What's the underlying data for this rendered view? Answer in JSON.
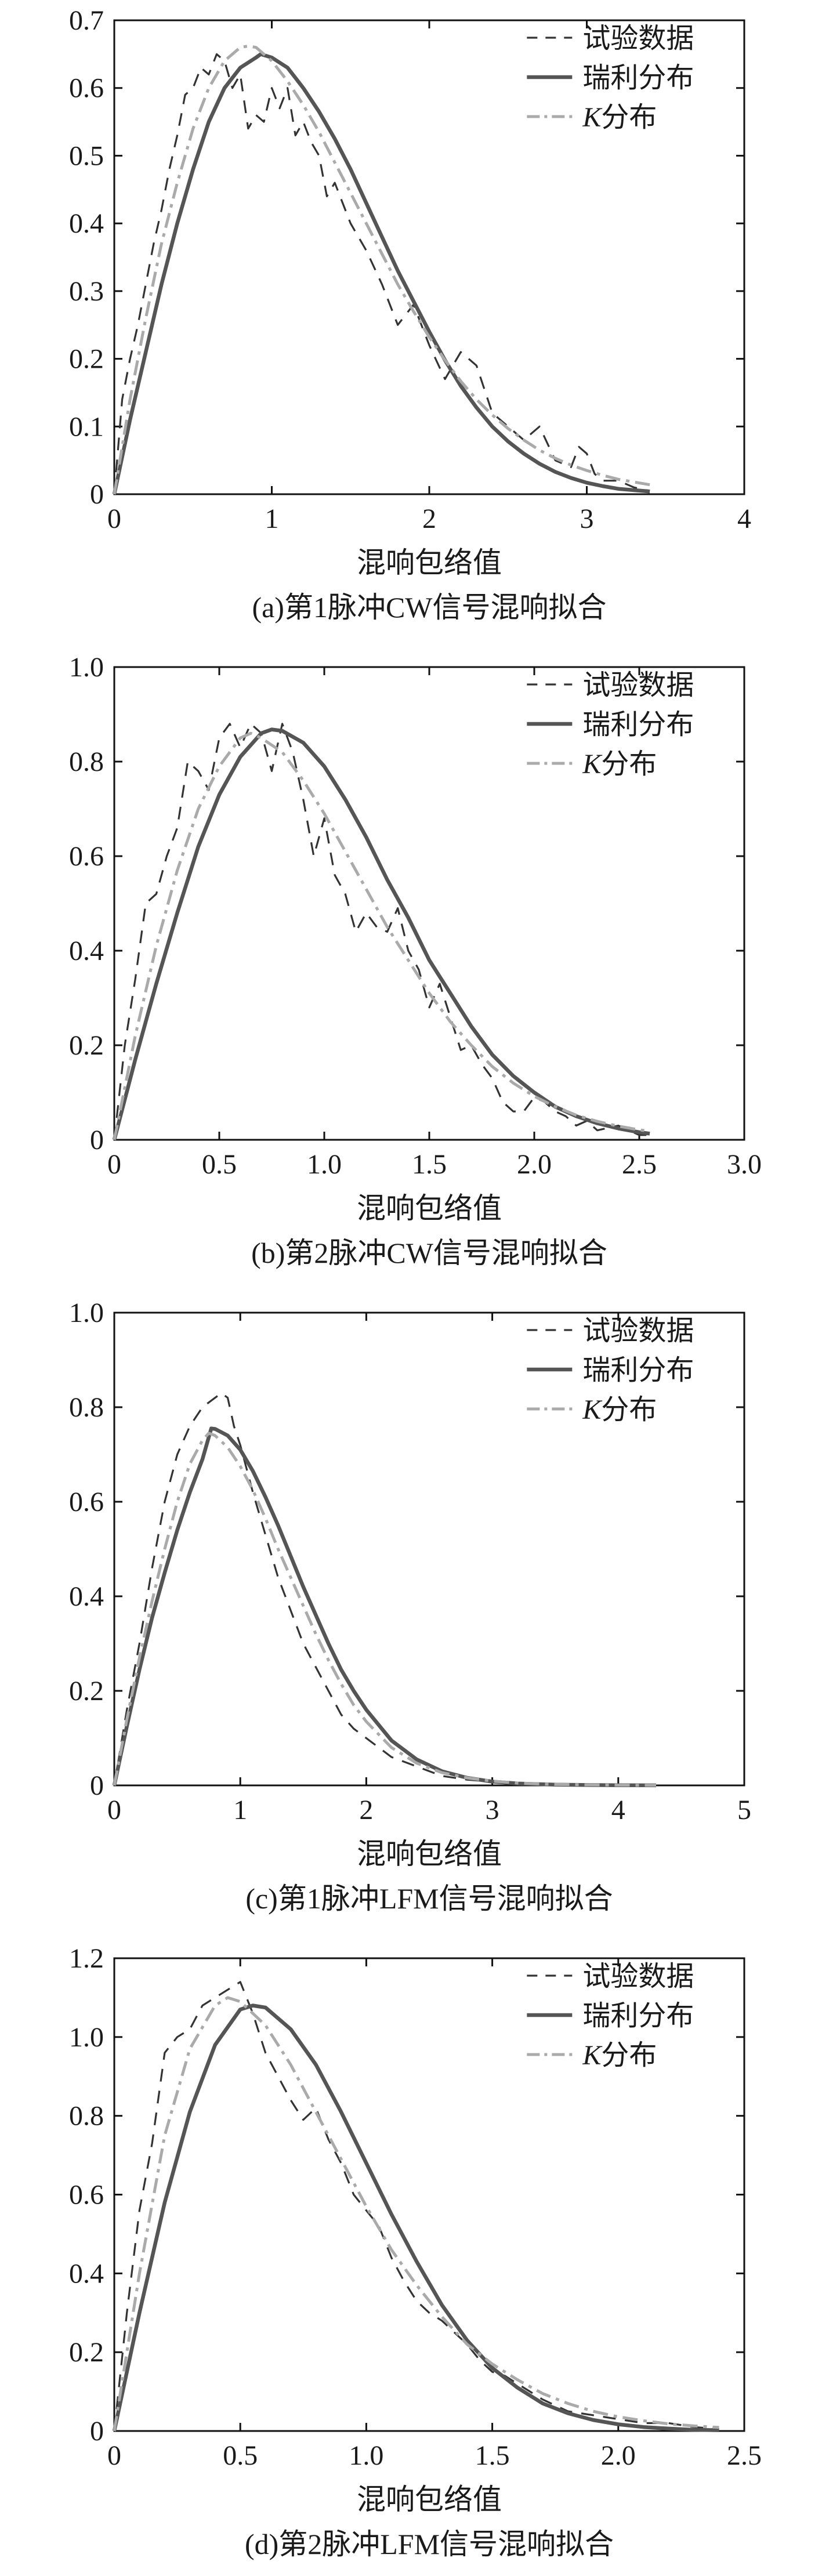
{
  "chart_data": [
    {
      "type": "line",
      "caption": "(a)第1脉冲CW信号混响拟合",
      "xlabel": "混响包络值",
      "ylabel": "",
      "xlim": [
        0,
        4
      ],
      "ylim": [
        0,
        0.7
      ],
      "xticks": [
        0,
        1,
        2,
        3,
        4
      ],
      "xtick_labels": [
        "0",
        "1",
        "2",
        "3",
        "4"
      ],
      "yticks": [
        0,
        0.1,
        0.2,
        0.3,
        0.4,
        0.5,
        0.6,
        0.7
      ],
      "ytick_labels": [
        "0",
        "0.1",
        "0.2",
        "0.3",
        "0.4",
        "0.5",
        "0.6",
        "0.7"
      ],
      "legend_position": "top-right",
      "series": [
        {
          "name": "试验数据",
          "style": "dashed",
          "color": "#333333",
          "x": [
            0,
            0.05,
            0.1,
            0.15,
            0.2,
            0.25,
            0.3,
            0.35,
            0.4,
            0.45,
            0.5,
            0.55,
            0.6,
            0.65,
            0.7,
            0.75,
            0.8,
            0.85,
            0.9,
            0.95,
            1.0,
            1.05,
            1.1,
            1.15,
            1.2,
            1.25,
            1.3,
            1.35,
            1.4,
            1.5,
            1.6,
            1.7,
            1.8,
            1.9,
            2.0,
            2.1,
            2.2,
            2.3,
            2.4,
            2.5,
            2.6,
            2.7,
            2.8,
            2.9,
            2.95,
            3.0,
            3.05,
            3.1,
            3.2,
            3.3,
            3.4
          ],
          "y": [
            0,
            0.14,
            0.2,
            0.25,
            0.31,
            0.37,
            0.42,
            0.48,
            0.53,
            0.59,
            0.6,
            0.63,
            0.62,
            0.65,
            0.64,
            0.6,
            0.62,
            0.54,
            0.56,
            0.55,
            0.6,
            0.57,
            0.6,
            0.53,
            0.55,
            0.52,
            0.5,
            0.44,
            0.46,
            0.4,
            0.36,
            0.31,
            0.25,
            0.28,
            0.22,
            0.17,
            0.21,
            0.19,
            0.12,
            0.1,
            0.08,
            0.1,
            0.05,
            0.04,
            0.07,
            0.06,
            0.03,
            0.02,
            0.02,
            0.01,
            0.005
          ]
        },
        {
          "name": "瑞利分布",
          "style": "solid",
          "color": "#555555",
          "x": [
            0,
            0.1,
            0.2,
            0.3,
            0.4,
            0.5,
            0.6,
            0.7,
            0.8,
            0.9,
            0.93,
            1.0,
            1.1,
            1.2,
            1.3,
            1.4,
            1.5,
            1.6,
            1.7,
            1.8,
            1.9,
            2.0,
            2.1,
            2.2,
            2.3,
            2.4,
            2.5,
            2.6,
            2.7,
            2.8,
            2.9,
            3.0,
            3.1,
            3.2,
            3.3,
            3.4
          ],
          "y": [
            0,
            0.11,
            0.21,
            0.31,
            0.4,
            0.48,
            0.55,
            0.6,
            0.63,
            0.645,
            0.65,
            0.645,
            0.63,
            0.6,
            0.565,
            0.525,
            0.48,
            0.43,
            0.38,
            0.33,
            0.285,
            0.24,
            0.198,
            0.16,
            0.128,
            0.1,
            0.078,
            0.06,
            0.045,
            0.033,
            0.024,
            0.017,
            0.012,
            0.008,
            0.006,
            0.004
          ]
        },
        {
          "name": "K分布",
          "name_italic_prefix": "K",
          "name_rest": "分布",
          "style": "dashdot",
          "color": "#aaaaaa",
          "x": [
            0,
            0.1,
            0.2,
            0.3,
            0.4,
            0.5,
            0.6,
            0.7,
            0.8,
            0.85,
            0.9,
            1.0,
            1.1,
            1.2,
            1.3,
            1.4,
            1.5,
            1.6,
            1.7,
            1.8,
            1.9,
            2.0,
            2.1,
            2.2,
            2.3,
            2.4,
            2.5,
            2.6,
            2.7,
            2.8,
            2.9,
            3.0,
            3.1,
            3.2,
            3.3,
            3.4
          ],
          "y": [
            0,
            0.14,
            0.26,
            0.37,
            0.46,
            0.54,
            0.6,
            0.64,
            0.66,
            0.662,
            0.66,
            0.64,
            0.61,
            0.575,
            0.535,
            0.49,
            0.445,
            0.4,
            0.355,
            0.31,
            0.27,
            0.232,
            0.198,
            0.167,
            0.14,
            0.117,
            0.097,
            0.08,
            0.065,
            0.053,
            0.043,
            0.035,
            0.028,
            0.022,
            0.018,
            0.014
          ]
        }
      ]
    },
    {
      "type": "line",
      "caption": "(b)第2脉冲CW信号混响拟合",
      "xlabel": "混响包络值",
      "ylabel": "",
      "xlim": [
        0,
        3.0
      ],
      "ylim": [
        0,
        1.0
      ],
      "xticks": [
        0,
        0.5,
        1.0,
        1.5,
        2.0,
        2.5,
        3.0
      ],
      "xtick_labels": [
        "0",
        "0.5",
        "1.0",
        "1.5",
        "2.0",
        "2.5",
        "3.0"
      ],
      "yticks": [
        0,
        0.2,
        0.4,
        0.6,
        0.8,
        1.0
      ],
      "ytick_labels": [
        "0",
        "0.2",
        "0.4",
        "0.6",
        "0.8",
        "1.0"
      ],
      "legend_position": "top-right",
      "series": [
        {
          "name": "试验数据",
          "style": "dashed",
          "color": "#333333",
          "x": [
            0,
            0.05,
            0.1,
            0.15,
            0.2,
            0.25,
            0.3,
            0.35,
            0.4,
            0.45,
            0.5,
            0.55,
            0.6,
            0.65,
            0.7,
            0.75,
            0.8,
            0.85,
            0.9,
            0.95,
            1.0,
            1.05,
            1.1,
            1.15,
            1.2,
            1.25,
            1.3,
            1.35,
            1.4,
            1.45,
            1.5,
            1.55,
            1.6,
            1.65,
            1.7,
            1.75,
            1.8,
            1.85,
            1.9,
            1.95,
            2.0,
            2.05,
            2.1,
            2.15,
            2.2,
            2.25,
            2.3,
            2.4,
            2.5,
            2.55
          ],
          "y": [
            0,
            0.2,
            0.34,
            0.5,
            0.52,
            0.6,
            0.66,
            0.8,
            0.78,
            0.74,
            0.85,
            0.88,
            0.83,
            0.88,
            0.86,
            0.78,
            0.88,
            0.82,
            0.72,
            0.6,
            0.68,
            0.56,
            0.52,
            0.44,
            0.48,
            0.45,
            0.44,
            0.49,
            0.4,
            0.36,
            0.28,
            0.33,
            0.26,
            0.19,
            0.2,
            0.16,
            0.13,
            0.08,
            0.06,
            0.06,
            0.09,
            0.08,
            0.06,
            0.05,
            0.03,
            0.04,
            0.02,
            0.03,
            0.01,
            0.01
          ]
        },
        {
          "name": "瑞利分布",
          "style": "solid",
          "color": "#555555",
          "x": [
            0,
            0.1,
            0.2,
            0.3,
            0.4,
            0.5,
            0.6,
            0.7,
            0.75,
            0.8,
            0.9,
            1.0,
            1.1,
            1.2,
            1.3,
            1.4,
            1.5,
            1.6,
            1.7,
            1.8,
            1.9,
            2.0,
            2.1,
            2.2,
            2.3,
            2.4,
            2.5,
            2.55
          ],
          "y": [
            0,
            0.17,
            0.33,
            0.48,
            0.62,
            0.73,
            0.81,
            0.86,
            0.868,
            0.865,
            0.84,
            0.79,
            0.72,
            0.64,
            0.55,
            0.47,
            0.38,
            0.31,
            0.24,
            0.18,
            0.135,
            0.1,
            0.07,
            0.05,
            0.035,
            0.024,
            0.016,
            0.013
          ]
        },
        {
          "name": "K分布",
          "name_italic_prefix": "K",
          "name_rest": "分布",
          "style": "dashdot",
          "color": "#aaaaaa",
          "x": [
            0,
            0.1,
            0.2,
            0.3,
            0.4,
            0.5,
            0.6,
            0.65,
            0.7,
            0.8,
            0.9,
            1.0,
            1.1,
            1.2,
            1.3,
            1.4,
            1.5,
            1.6,
            1.7,
            1.8,
            1.9,
            2.0,
            2.1,
            2.2,
            2.3,
            2.4,
            2.5,
            2.55
          ],
          "y": [
            0,
            0.22,
            0.41,
            0.57,
            0.7,
            0.79,
            0.85,
            0.86,
            0.85,
            0.82,
            0.76,
            0.69,
            0.61,
            0.53,
            0.45,
            0.38,
            0.31,
            0.25,
            0.2,
            0.155,
            0.12,
            0.092,
            0.07,
            0.052,
            0.039,
            0.029,
            0.021,
            0.018
          ]
        }
      ]
    },
    {
      "type": "line",
      "caption": "(c)第1脉冲LFM信号混响拟合",
      "xlabel": "混响包络值",
      "ylabel": "",
      "xlim": [
        0,
        5
      ],
      "ylim": [
        0,
        1.0
      ],
      "xticks": [
        0,
        1,
        2,
        3,
        4,
        5
      ],
      "xtick_labels": [
        "0",
        "1",
        "2",
        "3",
        "4",
        "5"
      ],
      "yticks": [
        0,
        0.2,
        0.4,
        0.6,
        0.8,
        1.0
      ],
      "ytick_labels": [
        "0",
        "0.2",
        "0.4",
        "0.6",
        "0.8",
        "1.0"
      ],
      "legend_position": "top-right",
      "series": [
        {
          "name": "试验数据",
          "style": "dashed",
          "color": "#333333",
          "x": [
            0,
            0.1,
            0.2,
            0.3,
            0.4,
            0.5,
            0.6,
            0.7,
            0.8,
            0.85,
            0.9,
            0.95,
            1.0,
            1.1,
            1.2,
            1.3,
            1.4,
            1.5,
            1.6,
            1.7,
            1.8,
            1.9,
            2.0,
            2.2,
            2.4,
            2.6,
            2.8,
            3.0,
            3.2,
            3.5,
            4.0,
            4.3
          ],
          "y": [
            0,
            0.16,
            0.3,
            0.46,
            0.6,
            0.7,
            0.76,
            0.8,
            0.82,
            0.83,
            0.82,
            0.76,
            0.72,
            0.62,
            0.53,
            0.44,
            0.37,
            0.3,
            0.25,
            0.2,
            0.15,
            0.12,
            0.1,
            0.06,
            0.04,
            0.02,
            0.012,
            0.008,
            0.005,
            0.003,
            0.001,
            0.0
          ]
        },
        {
          "name": "瑞利分布",
          "style": "solid",
          "color": "#555555",
          "x": [
            0,
            0.1,
            0.2,
            0.3,
            0.4,
            0.5,
            0.6,
            0.7,
            0.77,
            0.8,
            0.9,
            1.0,
            1.1,
            1.2,
            1.3,
            1.4,
            1.5,
            1.6,
            1.7,
            1.8,
            1.9,
            2.0,
            2.2,
            2.4,
            2.6,
            2.8,
            3.0,
            3.2,
            3.5,
            4.0,
            4.3
          ],
          "y": [
            0,
            0.125,
            0.245,
            0.355,
            0.45,
            0.54,
            0.62,
            0.69,
            0.755,
            0.754,
            0.74,
            0.71,
            0.665,
            0.61,
            0.55,
            0.485,
            0.42,
            0.36,
            0.3,
            0.245,
            0.2,
            0.16,
            0.095,
            0.055,
            0.03,
            0.016,
            0.008,
            0.004,
            0.0015,
            0.0003,
            0.0001
          ]
        },
        {
          "name": "K分布",
          "name_italic_prefix": "K",
          "name_rest": "分布",
          "style": "dashdot",
          "color": "#aaaaaa",
          "x": [
            0,
            0.1,
            0.2,
            0.3,
            0.4,
            0.5,
            0.6,
            0.7,
            0.75,
            0.8,
            0.9,
            1.0,
            1.1,
            1.2,
            1.3,
            1.4,
            1.5,
            1.6,
            1.7,
            1.8,
            1.9,
            2.0,
            2.2,
            2.4,
            2.6,
            2.8,
            3.0,
            3.2,
            3.5,
            4.0,
            4.3
          ],
          "y": [
            0,
            0.14,
            0.27,
            0.39,
            0.5,
            0.6,
            0.68,
            0.73,
            0.745,
            0.74,
            0.715,
            0.675,
            0.625,
            0.565,
            0.5,
            0.44,
            0.38,
            0.32,
            0.265,
            0.215,
            0.17,
            0.135,
            0.08,
            0.047,
            0.027,
            0.016,
            0.009,
            0.005,
            0.002,
            0.0005,
            0.0002
          ]
        }
      ]
    },
    {
      "type": "line",
      "caption": "(d)第2脉冲LFM信号混响拟合",
      "xlabel": "混响包络值",
      "ylabel": "",
      "xlim": [
        0,
        2.5
      ],
      "ylim": [
        0,
        1.2
      ],
      "xticks": [
        0,
        0.5,
        1.0,
        1.5,
        2.0,
        2.5
      ],
      "xtick_labels": [
        "0",
        "0.5",
        "1.0",
        "1.5",
        "2.0",
        "2.5"
      ],
      "yticks": [
        0,
        0.2,
        0.4,
        0.6,
        0.8,
        1.0,
        1.2
      ],
      "ytick_labels": [
        "0",
        "0.2",
        "0.4",
        "0.6",
        "0.8",
        "1.0",
        "1.2"
      ],
      "legend_position": "top-right",
      "series": [
        {
          "name": "试验数据",
          "style": "dashed",
          "color": "#333333",
          "x": [
            0,
            0.05,
            0.1,
            0.15,
            0.2,
            0.25,
            0.3,
            0.35,
            0.4,
            0.45,
            0.5,
            0.55,
            0.6,
            0.65,
            0.7,
            0.75,
            0.8,
            0.85,
            0.9,
            0.95,
            1.0,
            1.05,
            1.1,
            1.15,
            1.2,
            1.25,
            1.3,
            1.35,
            1.4,
            1.45,
            1.5,
            1.55,
            1.6,
            1.7,
            1.8,
            1.9,
            2.0,
            2.1,
            2.2,
            2.3,
            2.4
          ],
          "y": [
            0,
            0.3,
            0.56,
            0.73,
            0.96,
            1.0,
            1.02,
            1.08,
            1.1,
            1.12,
            1.14,
            1.06,
            0.96,
            0.9,
            0.84,
            0.79,
            0.82,
            0.74,
            0.68,
            0.6,
            0.56,
            0.52,
            0.44,
            0.38,
            0.33,
            0.3,
            0.28,
            0.25,
            0.22,
            0.18,
            0.15,
            0.14,
            0.12,
            0.08,
            0.05,
            0.04,
            0.03,
            0.02,
            0.02,
            0.01,
            0.005
          ]
        },
        {
          "name": "瑞利分布",
          "style": "solid",
          "color": "#555555",
          "x": [
            0,
            0.1,
            0.2,
            0.3,
            0.4,
            0.5,
            0.55,
            0.6,
            0.7,
            0.8,
            0.9,
            1.0,
            1.1,
            1.2,
            1.3,
            1.4,
            1.5,
            1.6,
            1.7,
            1.8,
            1.9,
            2.0,
            2.1,
            2.2,
            2.3,
            2.4
          ],
          "y": [
            0,
            0.3,
            0.58,
            0.81,
            0.98,
            1.07,
            1.08,
            1.075,
            1.02,
            0.93,
            0.81,
            0.68,
            0.55,
            0.43,
            0.32,
            0.23,
            0.16,
            0.11,
            0.07,
            0.045,
            0.028,
            0.017,
            0.01,
            0.006,
            0.003,
            0.002
          ]
        },
        {
          "name": "K分布",
          "name_italic_prefix": "K",
          "name_rest": "分布",
          "style": "dashdot",
          "color": "#aaaaaa",
          "x": [
            0,
            0.1,
            0.2,
            0.3,
            0.4,
            0.45,
            0.5,
            0.6,
            0.7,
            0.8,
            0.9,
            1.0,
            1.1,
            1.2,
            1.3,
            1.4,
            1.5,
            1.6,
            1.7,
            1.8,
            1.9,
            2.0,
            2.1,
            2.2,
            2.3,
            2.4
          ],
          "y": [
            0,
            0.4,
            0.75,
            0.97,
            1.08,
            1.1,
            1.09,
            1.03,
            0.93,
            0.81,
            0.69,
            0.57,
            0.46,
            0.37,
            0.29,
            0.22,
            0.17,
            0.13,
            0.095,
            0.07,
            0.05,
            0.036,
            0.026,
            0.018,
            0.013,
            0.009
          ]
        }
      ]
    }
  ]
}
